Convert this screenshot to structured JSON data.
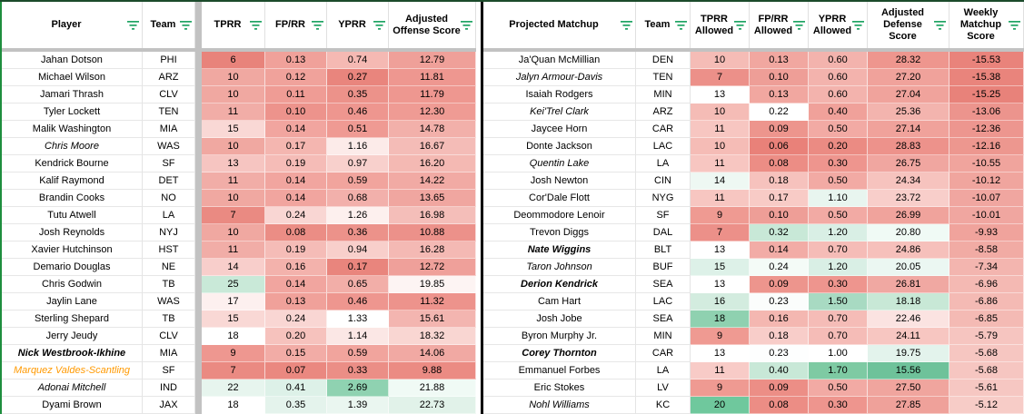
{
  "colors": {
    "filter_icon_green": "#1fa463",
    "top_border_green": "#1b4a2b",
    "left_border_green": "#1e8e3e",
    "table_divider_black": "#000000",
    "frozen_divider_gray": "#c2c2c2",
    "highlight_orange_name": "#ff9900"
  },
  "left_table": {
    "headers": [
      "Player",
      "Team",
      "TPRR",
      "FP/RR",
      "YPRR",
      "Adjusted Offense Score"
    ],
    "rows": [
      {
        "name": "Jahan Dotson",
        "team": "PHI",
        "style": "normal",
        "values": [
          [
            "6",
            "#e8837b"
          ],
          [
            "0.13",
            "#f0a19a"
          ],
          [
            "0.74",
            "#f5b9b3"
          ],
          [
            "12.79",
            "#efa099"
          ]
        ]
      },
      {
        "name": "Michael Wilson",
        "team": "ARZ",
        "style": "normal",
        "values": [
          [
            "10",
            "#f0a8a1"
          ],
          [
            "0.12",
            "#f0a29b"
          ],
          [
            "0.27",
            "#e9857d"
          ],
          [
            "11.81",
            "#ee9790"
          ]
        ]
      },
      {
        "name": "Jamari Thrash",
        "team": "CLV",
        "style": "normal",
        "values": [
          [
            "10",
            "#f0a8a1"
          ],
          [
            "0.11",
            "#ef9c95"
          ],
          [
            "0.35",
            "#ec928a"
          ],
          [
            "11.79",
            "#ee9790"
          ]
        ]
      },
      {
        "name": "Tyler Lockett",
        "team": "TEN",
        "style": "normal",
        "values": [
          [
            "11",
            "#f1ada7"
          ],
          [
            "0.10",
            "#ed938c"
          ],
          [
            "0.46",
            "#ee968f"
          ],
          [
            "12.30",
            "#ef9b94"
          ]
        ]
      },
      {
        "name": "Malik Washington",
        "team": "MIA",
        "style": "normal",
        "values": [
          [
            "15",
            "#f9d8d5"
          ],
          [
            "0.14",
            "#f1a59f"
          ],
          [
            "0.51",
            "#ef9a93"
          ],
          [
            "14.78",
            "#f2b0aa"
          ]
        ]
      },
      {
        "name": "Chris Moore",
        "team": "WAS",
        "style": "italic",
        "values": [
          [
            "10",
            "#f0a8a1"
          ],
          [
            "0.17",
            "#f4b6b0"
          ],
          [
            "1.16",
            "#fcebe9"
          ],
          [
            "16.67",
            "#f4bcb7"
          ]
        ]
      },
      {
        "name": "Kendrick Bourne",
        "team": "SF",
        "style": "normal",
        "values": [
          [
            "13",
            "#f6c5c1"
          ],
          [
            "0.19",
            "#f5bcb7"
          ],
          [
            "0.97",
            "#f8d0cc"
          ],
          [
            "16.20",
            "#f4b9b3"
          ]
        ]
      },
      {
        "name": "Kalif Raymond",
        "team": "DET",
        "style": "normal",
        "values": [
          [
            "11",
            "#f1ada7"
          ],
          [
            "0.14",
            "#f1a59f"
          ],
          [
            "0.59",
            "#f1a49d"
          ],
          [
            "14.22",
            "#f1aaa4"
          ]
        ]
      },
      {
        "name": "Brandin Cooks",
        "team": "NO",
        "style": "normal",
        "values": [
          [
            "10",
            "#f0a8a1"
          ],
          [
            "0.14",
            "#f1a59f"
          ],
          [
            "0.68",
            "#f2b0ab"
          ],
          [
            "13.65",
            "#f0a6a0"
          ]
        ]
      },
      {
        "name": "Tutu Atwell",
        "team": "LA",
        "style": "normal",
        "values": [
          [
            "7",
            "#ea8a82"
          ],
          [
            "0.24",
            "#f9d6d3"
          ],
          [
            "1.26",
            "#fdf0ee"
          ],
          [
            "16.98",
            "#f4beb9"
          ]
        ]
      },
      {
        "name": "Josh Reynolds",
        "team": "NYJ",
        "style": "normal",
        "values": [
          [
            "10",
            "#f0a8a1"
          ],
          [
            "0.08",
            "#eb8d85"
          ],
          [
            "0.36",
            "#ec928a"
          ],
          [
            "10.88",
            "#ec918a"
          ]
        ]
      },
      {
        "name": "Xavier Hutchinson",
        "team": "HST",
        "style": "normal",
        "values": [
          [
            "11",
            "#f1ada7"
          ],
          [
            "0.19",
            "#f5bcb7"
          ],
          [
            "0.94",
            "#f8cfcb"
          ],
          [
            "16.28",
            "#f4b9b4"
          ]
        ]
      },
      {
        "name": "Demario Douglas",
        "team": "NE",
        "style": "normal",
        "values": [
          [
            "14",
            "#f8cecb"
          ],
          [
            "0.16",
            "#f3b2ac"
          ],
          [
            "0.17",
            "#e9857d"
          ],
          [
            "12.72",
            "#efa09a"
          ]
        ]
      },
      {
        "name": "Chris Godwin",
        "team": "TB",
        "style": "normal",
        "values": [
          [
            "25",
            "#c9e9d8"
          ],
          [
            "0.14",
            "#f1a59f"
          ],
          [
            "0.65",
            "#f2aea8"
          ],
          [
            "19.85",
            "#fdf4f3"
          ]
        ]
      },
      {
        "name": "Jaylin Lane",
        "team": "WAS",
        "style": "normal",
        "values": [
          [
            "17",
            "#fdf0ef"
          ],
          [
            "0.13",
            "#f0a19a"
          ],
          [
            "0.46",
            "#ee968f"
          ],
          [
            "11.32",
            "#ed938c"
          ]
        ]
      },
      {
        "name": "Sterling Shepard",
        "team": "TB",
        "style": "normal",
        "values": [
          [
            "15",
            "#f9d8d5"
          ],
          [
            "0.24",
            "#f9d6d3"
          ],
          [
            "1.33",
            "#ffffff"
          ],
          [
            "15.61",
            "#f3b5b0"
          ]
        ]
      },
      {
        "name": "Jerry Jeudy",
        "team": "CLV",
        "style": "normal",
        "values": [
          [
            "18",
            "#ffffff"
          ],
          [
            "0.20",
            "#f6c2bd"
          ],
          [
            "1.14",
            "#fbe7e5"
          ],
          [
            "18.32",
            "#f9d6d2"
          ]
        ]
      },
      {
        "name": "Nick Westbrook-Ikhine",
        "team": "MIA",
        "style": "bold-italic",
        "values": [
          [
            "9",
            "#ee9790"
          ],
          [
            "0.15",
            "#f2aca6"
          ],
          [
            "0.59",
            "#f1a49d"
          ],
          [
            "14.06",
            "#f1a9a3"
          ]
        ]
      },
      {
        "name": "Marquez Valdes-Scantling",
        "team": "SF",
        "style": "italic",
        "name_color": "#ff9900",
        "values": [
          [
            "7",
            "#ea8a82"
          ],
          [
            "0.07",
            "#ea8880"
          ],
          [
            "0.33",
            "#eb8e86"
          ],
          [
            "9.88",
            "#eb8b83"
          ]
        ]
      },
      {
        "name": "Adonai Mitchell",
        "team": "IND",
        "style": "italic",
        "values": [
          [
            "22",
            "#e7f5ee"
          ],
          [
            "0.41",
            "#ddf1e8"
          ],
          [
            "2.69",
            "#8fd2b1"
          ],
          [
            "21.88",
            "#f0faf5"
          ]
        ]
      },
      {
        "name": "Dyami Brown",
        "team": "JAX",
        "style": "normal",
        "values": [
          [
            "18",
            "#ffffff"
          ],
          [
            "0.35",
            "#e4f3ec"
          ],
          [
            "1.39",
            "#eaf6f0"
          ],
          [
            "22.73",
            "#e1f2e9"
          ]
        ]
      }
    ]
  },
  "right_table": {
    "headers": [
      "Projected Matchup",
      "Team",
      "TPRR Allowed",
      "FP/RR Allowed",
      "YPRR Allowed",
      "Adjusted Defense Score",
      "Weekly Matchup Score"
    ],
    "rows": [
      {
        "name": "Ja'Quan McMillian",
        "team": "DEN",
        "style": "normal",
        "values": [
          [
            "10",
            "#f5bcb6"
          ],
          [
            "0.13",
            "#f1a7a0"
          ],
          [
            "0.60",
            "#f3b3ad"
          ],
          [
            "28.32",
            "#ee968e"
          ],
          [
            "-15.53",
            "#e9837b"
          ]
        ]
      },
      {
        "name": "Jalyn Armour-Davis",
        "team": "TEN",
        "style": "italic",
        "values": [
          [
            "7",
            "#ec9089"
          ],
          [
            "0.10",
            "#ee9e97"
          ],
          [
            "0.60",
            "#f3b3ad"
          ],
          [
            "27.20",
            "#f0a29b"
          ],
          [
            "-15.38",
            "#e9847c"
          ]
        ]
      },
      {
        "name": "Isaiah Rodgers",
        "team": "MIN",
        "style": "normal",
        "values": [
          [
            "13",
            "#ffffff"
          ],
          [
            "0.13",
            "#f1a7a0"
          ],
          [
            "0.60",
            "#f3b3ad"
          ],
          [
            "27.04",
            "#f0a39c"
          ],
          [
            "-15.25",
            "#e8827a"
          ]
        ]
      },
      {
        "name": "Kei'Trel Clark",
        "team": "ARZ",
        "style": "italic",
        "values": [
          [
            "10",
            "#f5bcb6"
          ],
          [
            "0.22",
            "#ffffff"
          ],
          [
            "0.40",
            "#f0a19a"
          ],
          [
            "25.36",
            "#f3b4ae"
          ],
          [
            "-13.06",
            "#ec948d"
          ]
        ]
      },
      {
        "name": "Jaycee Horn",
        "team": "CAR",
        "style": "normal",
        "values": [
          [
            "11",
            "#f7c6c1"
          ],
          [
            "0.09",
            "#ed958d"
          ],
          [
            "0.50",
            "#f2aaa4"
          ],
          [
            "27.14",
            "#f0a29b"
          ],
          [
            "-12.36",
            "#ed968f"
          ]
        ]
      },
      {
        "name": "Donte Jackson",
        "team": "LAC",
        "style": "normal",
        "values": [
          [
            "10",
            "#f5bcb6"
          ],
          [
            "0.06",
            "#e98179"
          ],
          [
            "0.20",
            "#eb8b83"
          ],
          [
            "28.83",
            "#ed928b"
          ],
          [
            "-12.16",
            "#ed978f"
          ]
        ]
      },
      {
        "name": "Quentin Lake",
        "team": "LA",
        "style": "italic",
        "values": [
          [
            "11",
            "#f7c6c1"
          ],
          [
            "0.08",
            "#ec8d85"
          ],
          [
            "0.30",
            "#ee958e"
          ],
          [
            "26.75",
            "#f0a6a0"
          ],
          [
            "-10.55",
            "#f0a49d"
          ]
        ]
      },
      {
        "name": "Josh Newton",
        "team": "CIN",
        "style": "normal",
        "values": [
          [
            "14",
            "#eef8f3"
          ],
          [
            "0.18",
            "#f6c2bd"
          ],
          [
            "0.50",
            "#f2aaa4"
          ],
          [
            "24.34",
            "#f6c3be"
          ],
          [
            "-10.12",
            "#f0a59e"
          ]
        ]
      },
      {
        "name": "Cor'Dale Flott",
        "team": "NYG",
        "style": "normal",
        "values": [
          [
            "11",
            "#f7c6c1"
          ],
          [
            "0.17",
            "#f8cbc6"
          ],
          [
            "1.10",
            "#e8f5ef"
          ],
          [
            "23.72",
            "#f8ceca"
          ],
          [
            "-10.07",
            "#f0a6a0"
          ]
        ]
      },
      {
        "name": "Deommodore Lenoir",
        "team": "SF",
        "style": "normal",
        "values": [
          [
            "9",
            "#ef9a92"
          ],
          [
            "0.10",
            "#ee9e97"
          ],
          [
            "0.50",
            "#f2aaa4"
          ],
          [
            "26.99",
            "#f0a39c"
          ],
          [
            "-10.01",
            "#f0a6a0"
          ]
        ]
      },
      {
        "name": "Trevon Diggs",
        "team": "DAL",
        "style": "normal",
        "values": [
          [
            "7",
            "#ec9089"
          ],
          [
            "0.32",
            "#c8e8d7"
          ],
          [
            "1.20",
            "#d9efe5"
          ],
          [
            "20.80",
            "#f0faf5"
          ],
          [
            "-9.93",
            "#f0a39c"
          ]
        ]
      },
      {
        "name": "Nate Wiggins",
        "team": "BLT",
        "style": "bold-italic",
        "values": [
          [
            "13",
            "#ffffff"
          ],
          [
            "0.14",
            "#f2aca6"
          ],
          [
            "0.70",
            "#f5bcb7"
          ],
          [
            "24.86",
            "#f6c0bb"
          ],
          [
            "-8.58",
            "#f1aba4"
          ]
        ]
      },
      {
        "name": "Taron Johnson",
        "team": "BUF",
        "style": "italic",
        "values": [
          [
            "15",
            "#ddf1e8"
          ],
          [
            "0.24",
            "#f4fbf7"
          ],
          [
            "1.20",
            "#d9efe5"
          ],
          [
            "20.05",
            "#ebf7f2"
          ],
          [
            "-7.34",
            "#f3b5af"
          ]
        ]
      },
      {
        "name": "Derion Kendrick",
        "team": "SEA",
        "style": "bold-italic",
        "values": [
          [
            "13",
            "#ffffff"
          ],
          [
            "0.09",
            "#ed958d"
          ],
          [
            "0.30",
            "#ee958e"
          ],
          [
            "26.81",
            "#f0a8a2"
          ],
          [
            "-6.96",
            "#f4b9b3"
          ]
        ]
      },
      {
        "name": "Cam Hart",
        "team": "LAC",
        "style": "normal",
        "values": [
          [
            "16",
            "#d3ecdf"
          ],
          [
            "0.23",
            "#fbfdfc"
          ],
          [
            "1.50",
            "#a8dac2"
          ],
          [
            "18.18",
            "#c8e8d6"
          ],
          [
            "-6.86",
            "#f4bab4"
          ]
        ]
      },
      {
        "name": "Josh Jobe",
        "team": "SEA",
        "style": "normal",
        "values": [
          [
            "18",
            "#8fd1b0"
          ],
          [
            "0.16",
            "#f4b7b1"
          ],
          [
            "0.70",
            "#f5bcb7"
          ],
          [
            "22.46",
            "#fbe3e1"
          ],
          [
            "-6.85",
            "#f4bab4"
          ]
        ]
      },
      {
        "name": "Byron Murphy Jr.",
        "team": "MIN",
        "style": "normal",
        "values": [
          [
            "9",
            "#ef9a92"
          ],
          [
            "0.18",
            "#f8cdc9"
          ],
          [
            "0.70",
            "#f5bcb7"
          ],
          [
            "24.11",
            "#f7c6c1"
          ],
          [
            "-5.79",
            "#f6c5c0"
          ]
        ]
      },
      {
        "name": "Corey Thornton",
        "team": "CAR",
        "style": "bold-italic",
        "values": [
          [
            "13",
            "#ffffff"
          ],
          [
            "0.23",
            "#fdfefe"
          ],
          [
            "1.00",
            "#ffffff"
          ],
          [
            "19.75",
            "#e3f3ec"
          ],
          [
            "-5.68",
            "#f6c6c1"
          ]
        ]
      },
      {
        "name": "Emmanuel Forbes",
        "team": "LA",
        "style": "normal",
        "values": [
          [
            "11",
            "#f8cbc7"
          ],
          [
            "0.40",
            "#c8e8d7"
          ],
          [
            "1.70",
            "#7ecaa3"
          ],
          [
            "15.56",
            "#6ec29a"
          ],
          [
            "-5.68",
            "#f6c6c1"
          ]
        ]
      },
      {
        "name": "Eric Stokes",
        "team": "LV",
        "style": "normal",
        "values": [
          [
            "9",
            "#ef9a92"
          ],
          [
            "0.09",
            "#ec8e86"
          ],
          [
            "0.50",
            "#f2aaa4"
          ],
          [
            "27.50",
            "#f0a59e"
          ],
          [
            "-5.61",
            "#f6c7c2"
          ]
        ]
      },
      {
        "name": "Nohl Williams",
        "team": "KC",
        "style": "italic",
        "values": [
          [
            "20",
            "#6fc89d"
          ],
          [
            "0.08",
            "#ec8d85"
          ],
          [
            "0.30",
            "#ee958e"
          ],
          [
            "27.85",
            "#efa19a"
          ],
          [
            "-5.12",
            "#f7ccc7"
          ]
        ]
      }
    ]
  }
}
